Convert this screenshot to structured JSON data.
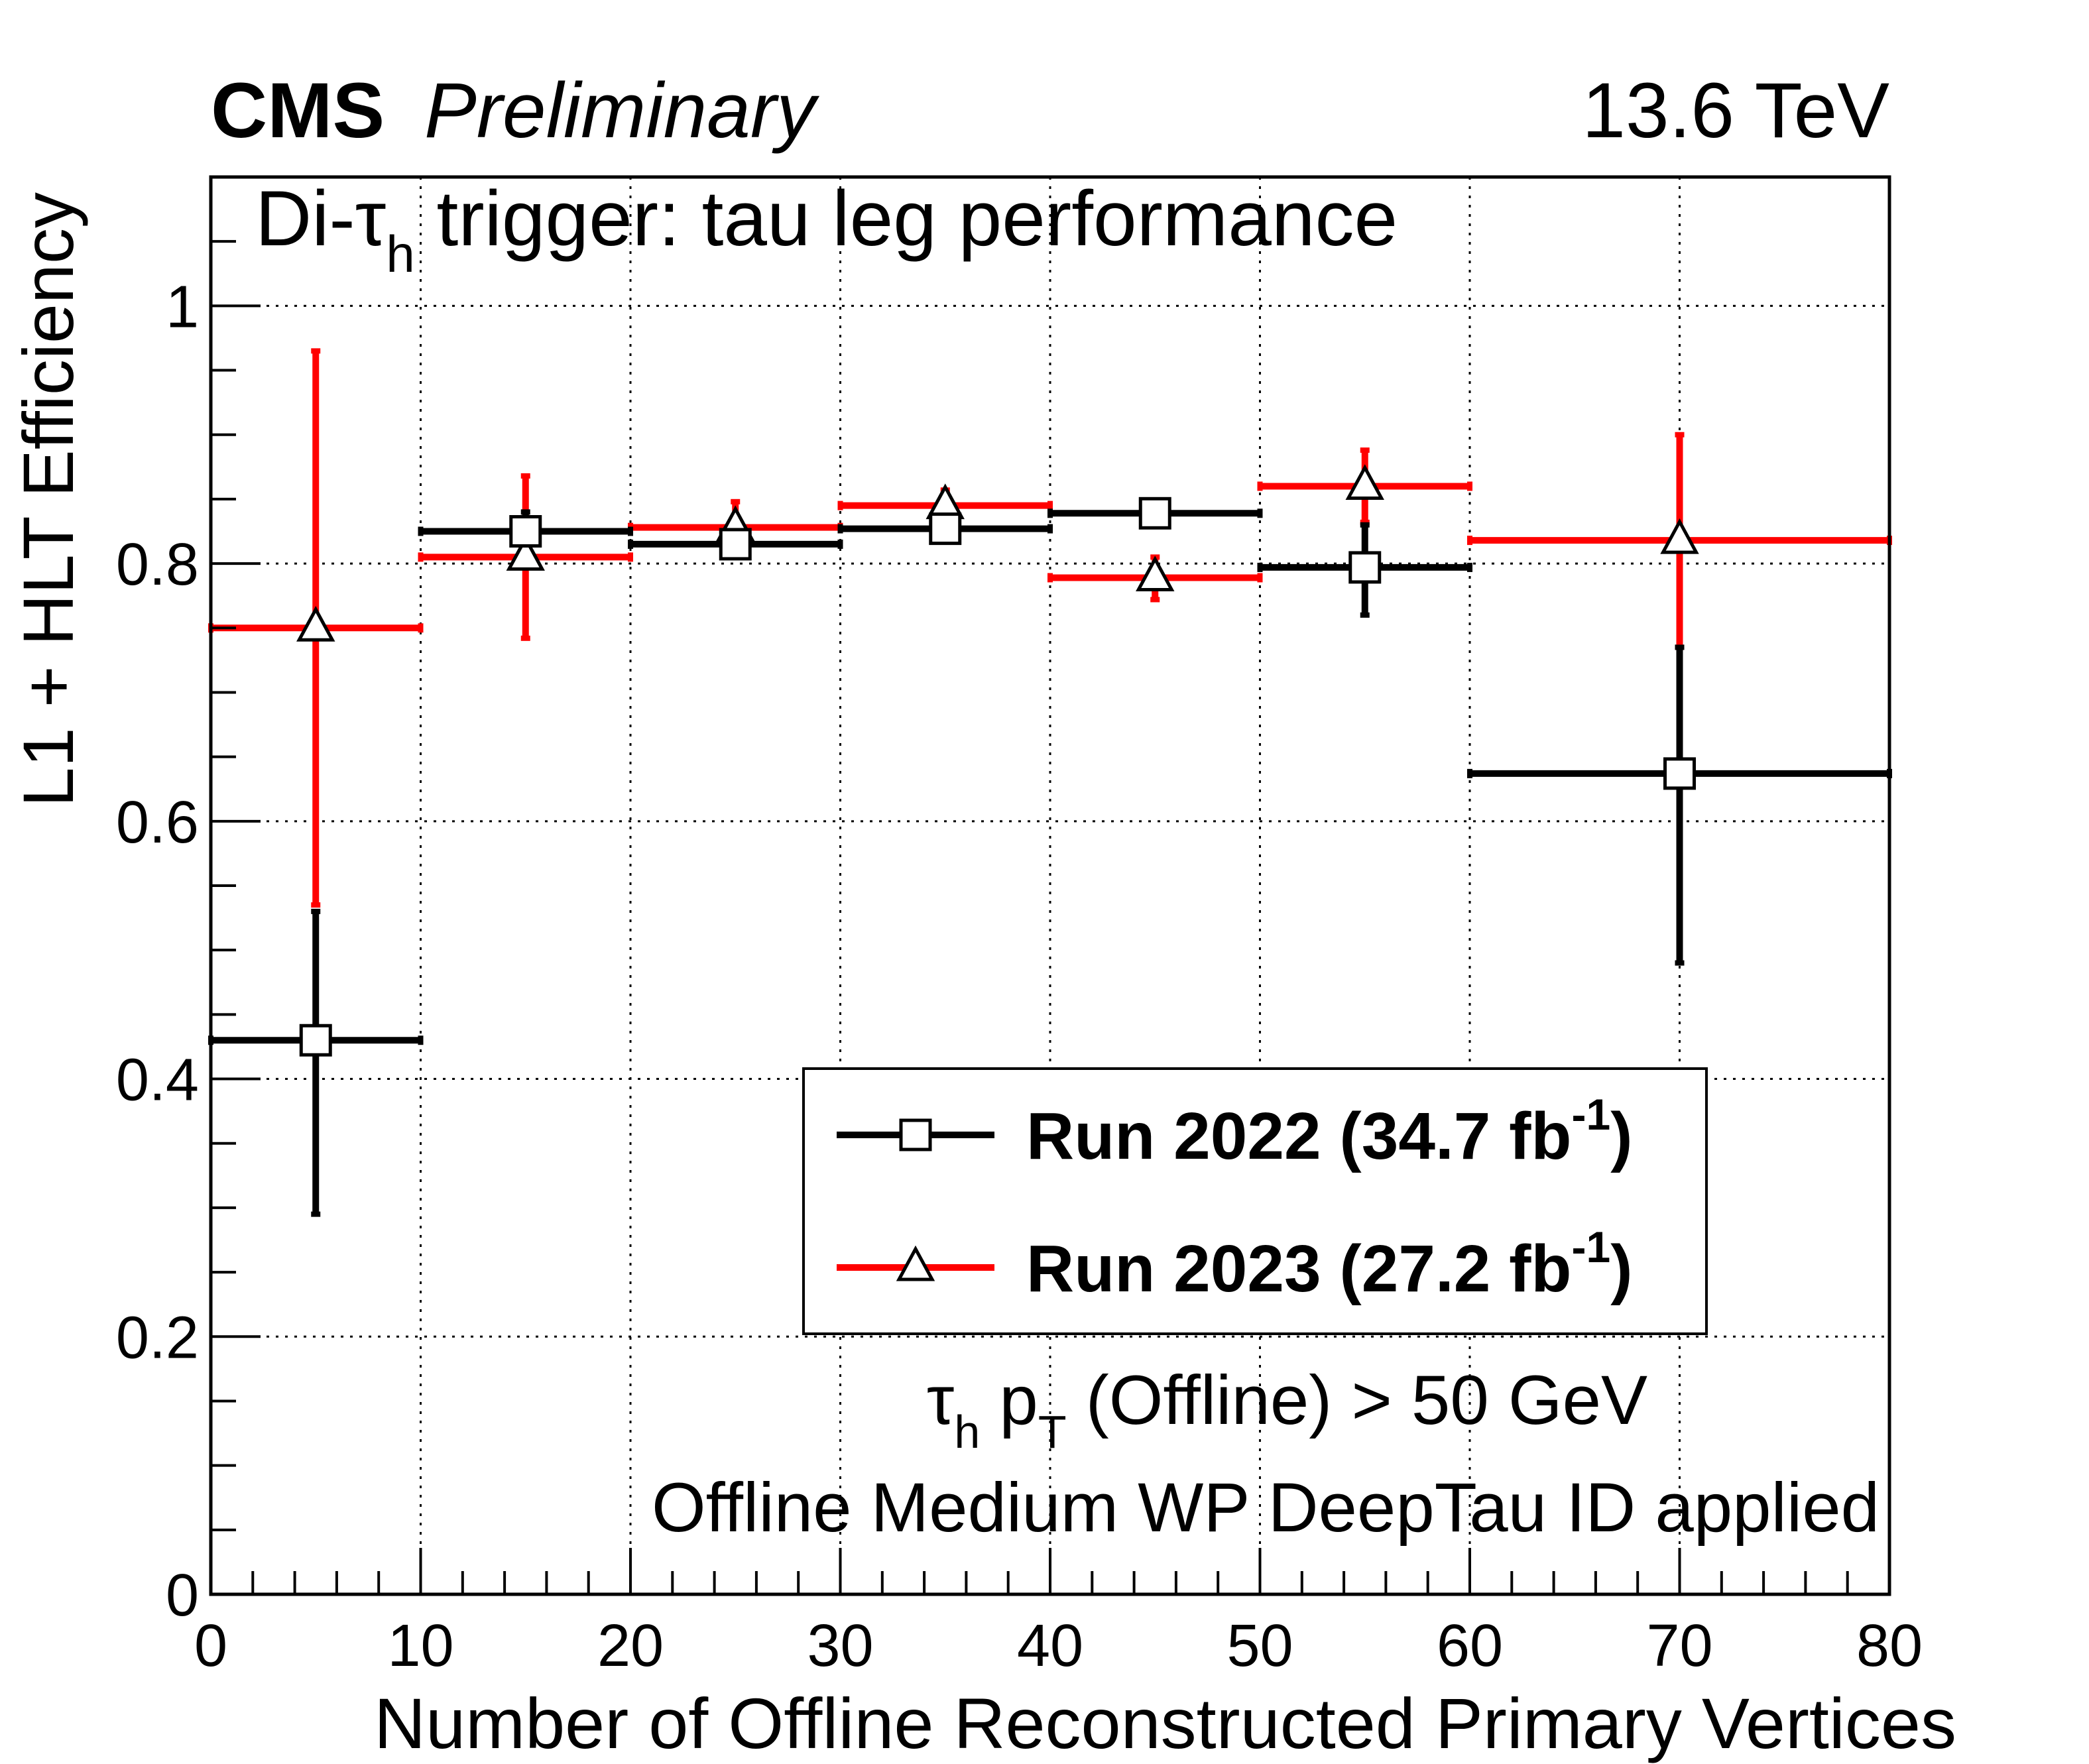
{
  "header": {
    "cms": "CMS",
    "preliminary": "Preliminary",
    "energy": "13.6 TeV"
  },
  "annotations": {
    "trigger_prefix": "Di-",
    "tau": "τ",
    "tau_sub": "h",
    "trigger_suffix": " trigger: tau leg performance",
    "cut_tau": "τ",
    "cut_tau_sub": "h",
    "cut_p": " p",
    "cut_p_sub": "T",
    "cut_suffix": " (Offline) > 50 GeV",
    "id_line": "Offline Medium WP DeepTau ID applied"
  },
  "legend": {
    "entries": [
      {
        "prefix": "Run 2022 (34.7 fb",
        "sup": "-1",
        "suffix": ")",
        "marker": "square",
        "color": "#000000"
      },
      {
        "prefix": "Run 2023 (27.2 fb",
        "sup": "-1",
        "suffix": ")",
        "marker": "triangle",
        "color": "#ff0000"
      }
    ]
  },
  "chart_data": {
    "type": "scatter",
    "xlabel": "Number of Offline Reconstructed Primary Vertices",
    "ylabel": "L1 + HLT Efficiency",
    "xlim": [
      0,
      80
    ],
    "ylim": [
      0,
      1.1
    ],
    "grid": true,
    "legend_position": "bottom-right",
    "x_ticks": [
      "0",
      "10",
      "20",
      "30",
      "40",
      "50",
      "60",
      "70",
      "80"
    ],
    "y_ticks": [
      "0",
      "0.2",
      "0.4",
      "0.6",
      "0.8",
      "1"
    ],
    "series": [
      {
        "name": "Run 2022 (34.7 fb-1)",
        "color": "#000000",
        "marker": "square",
        "points": [
          {
            "x": 5,
            "xlo": 0,
            "xhi": 10,
            "y": 0.43,
            "ylo": 0.295,
            "yhi": 0.53
          },
          {
            "x": 15,
            "xlo": 10,
            "xhi": 20,
            "y": 0.825,
            "ylo": 0.81,
            "yhi": 0.84
          },
          {
            "x": 25,
            "xlo": 20,
            "xhi": 30,
            "y": 0.815,
            "ylo": 0.81,
            "yhi": 0.82
          },
          {
            "x": 35,
            "xlo": 30,
            "xhi": 40,
            "y": 0.827,
            "ylo": 0.822,
            "yhi": 0.832
          },
          {
            "x": 45,
            "xlo": 40,
            "xhi": 50,
            "y": 0.839,
            "ylo": 0.829,
            "yhi": 0.849
          },
          {
            "x": 55,
            "xlo": 50,
            "xhi": 60,
            "y": 0.797,
            "ylo": 0.76,
            "yhi": 0.83
          },
          {
            "x": 70,
            "xlo": 60,
            "xhi": 80,
            "y": 0.637,
            "ylo": 0.49,
            "yhi": 0.735
          }
        ]
      },
      {
        "name": "Run 2023 (27.2 fb-1)",
        "color": "#ff0000",
        "marker": "triangle",
        "points": [
          {
            "x": 5,
            "xlo": 0,
            "xhi": 10,
            "y": 0.75,
            "ylo": 0.535,
            "yhi": 0.965
          },
          {
            "x": 15,
            "xlo": 10,
            "xhi": 20,
            "y": 0.805,
            "ylo": 0.742,
            "yhi": 0.868
          },
          {
            "x": 25,
            "xlo": 20,
            "xhi": 30,
            "y": 0.828,
            "ylo": 0.808,
            "yhi": 0.848
          },
          {
            "x": 35,
            "xlo": 30,
            "xhi": 40,
            "y": 0.845,
            "ylo": 0.833,
            "yhi": 0.857
          },
          {
            "x": 45,
            "xlo": 40,
            "xhi": 50,
            "y": 0.789,
            "ylo": 0.772,
            "yhi": 0.805
          },
          {
            "x": 55,
            "xlo": 50,
            "xhi": 60,
            "y": 0.86,
            "ylo": 0.832,
            "yhi": 0.888
          },
          {
            "x": 70,
            "xlo": 60,
            "xhi": 80,
            "y": 0.818,
            "ylo": 0.735,
            "yhi": 0.9
          }
        ]
      }
    ]
  }
}
